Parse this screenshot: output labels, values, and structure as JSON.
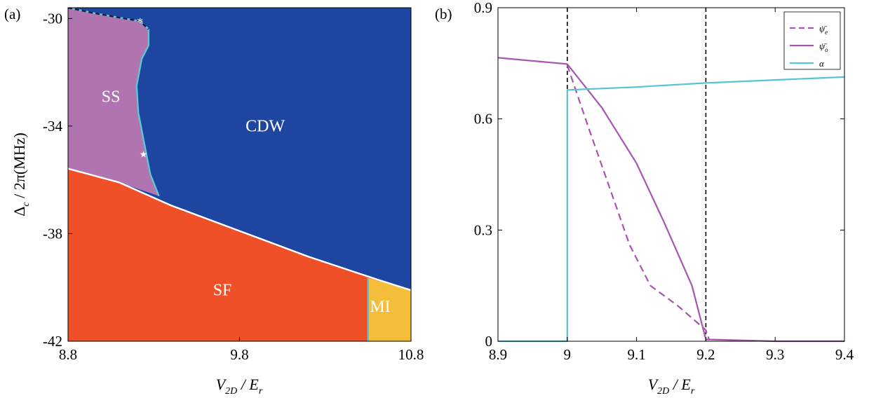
{
  "chart_data": [
    {
      "panel": "(a)",
      "type": "area",
      "xlabel": {
        "main": "V",
        "sub": "2D",
        "rest": " / E",
        "sub2": "r"
      },
      "ylabel": {
        "main": "Δ",
        "sub": "c",
        "rest": " / 2π(MHz)"
      },
      "xlim": [
        8.8,
        10.8
      ],
      "ylim": [
        -42,
        -29.6
      ],
      "xticks": [
        {
          "v": 8.8,
          "label": "8.8"
        },
        {
          "v": 9.8,
          "label": "9.8"
        },
        {
          "v": 10.8,
          "label": "10.8"
        }
      ],
      "yticks": [
        {
          "v": -30,
          "label": "-30"
        },
        {
          "v": -34,
          "label": "-34"
        },
        {
          "v": -38,
          "label": "-38"
        },
        {
          "v": -42,
          "label": "-42"
        }
      ],
      "regions": [
        {
          "name": "SS",
          "color": "#B074B0",
          "label_at": [
            9.05,
            -33.1
          ]
        },
        {
          "name": "CDW",
          "color": "#1E45A0",
          "label_at": [
            9.95,
            -34.2
          ]
        },
        {
          "name": "SF",
          "color": "#F05028",
          "label_at": [
            9.7,
            -40.3
          ]
        },
        {
          "name": "MI",
          "color": "#F5BE3A",
          "label_at": [
            10.62,
            -40.9
          ]
        }
      ],
      "boundaries": {
        "sf_upper": [
          [
            8.8,
            -35.58
          ],
          [
            9.1,
            -36.1
          ],
          [
            9.4,
            -36.95
          ],
          [
            9.8,
            -37.9
          ],
          [
            10.2,
            -38.85
          ],
          [
            10.6,
            -39.7
          ],
          [
            10.8,
            -40.1
          ]
        ],
        "ss_cdw": [
          [
            8.8,
            -29.6
          ],
          [
            8.95,
            -29.8
          ],
          [
            9.22,
            -30.1
          ],
          [
            9.27,
            -30.4
          ],
          [
            9.27,
            -31.0
          ],
          [
            9.23,
            -31.5
          ],
          [
            9.2,
            -32.5
          ],
          [
            9.21,
            -33.5
          ],
          [
            9.24,
            -34.5
          ],
          [
            9.28,
            -35.8
          ],
          [
            9.33,
            -36.6
          ]
        ],
        "mi_x": 10.55,
        "mi_y_top": -39.65
      },
      "markers": [
        {
          "symbol": "*",
          "x": 9.22,
          "y": -30.15
        },
        {
          "symbol": "★",
          "x": 9.24,
          "y": -35.0
        }
      ]
    },
    {
      "panel": "(b)",
      "type": "line",
      "xlabel": {
        "main": "V",
        "sub": "2D",
        "rest": " / E",
        "sub2": "r"
      },
      "xlim": [
        8.9,
        9.4
      ],
      "ylim": [
        0,
        0.9
      ],
      "xticks": [
        {
          "v": 8.9,
          "label": "8.9"
        },
        {
          "v": 9.0,
          "label": "9"
        },
        {
          "v": 9.1,
          "label": "9.1"
        },
        {
          "v": 9.2,
          "label": "9.2"
        },
        {
          "v": 9.3,
          "label": "9.3"
        },
        {
          "v": 9.4,
          "label": "9.4"
        }
      ],
      "yticks": [
        {
          "v": 0,
          "label": "0"
        },
        {
          "v": 0.3,
          "label": "0.3"
        },
        {
          "v": 0.6,
          "label": "0.6"
        },
        {
          "v": 0.9,
          "label": "0.9"
        }
      ],
      "vlines": [
        9.0,
        9.2
      ],
      "series": [
        {
          "name": "ψ̄e",
          "legend_main": "ψ̄",
          "legend_sub": "e",
          "color": "#A855B0",
          "dash": true,
          "points": [
            [
              9.0,
              0.745
            ],
            [
              9.03,
              0.58
            ],
            [
              9.06,
              0.42
            ],
            [
              9.09,
              0.26
            ],
            [
              9.12,
              0.15
            ],
            [
              9.16,
              0.095
            ],
            [
              9.2,
              0.03
            ],
            [
              9.205,
              0.003
            ]
          ]
        },
        {
          "name": "ψ̄o",
          "legend_main": "ψ̄",
          "legend_sub": "o",
          "color": "#A855B0",
          "dash": false,
          "points": [
            [
              8.9,
              0.765
            ],
            [
              9.0,
              0.748
            ],
            [
              9.05,
              0.63
            ],
            [
              9.1,
              0.48
            ],
            [
              9.14,
              0.32
            ],
            [
              9.18,
              0.15
            ],
            [
              9.2,
              0.005
            ],
            [
              9.3,
              0.0
            ],
            [
              9.4,
              0.0
            ]
          ]
        },
        {
          "name": "α",
          "legend_main": "α",
          "legend_sub": "",
          "color": "#56C4D4",
          "dash": false,
          "points": [
            [
              8.9,
              0.0
            ],
            [
              9.0,
              0.0
            ],
            [
              9.0,
              0.678
            ],
            [
              9.1,
              0.686
            ],
            [
              9.2,
              0.697
            ],
            [
              9.3,
              0.705
            ],
            [
              9.4,
              0.713
            ]
          ]
        }
      ]
    }
  ]
}
